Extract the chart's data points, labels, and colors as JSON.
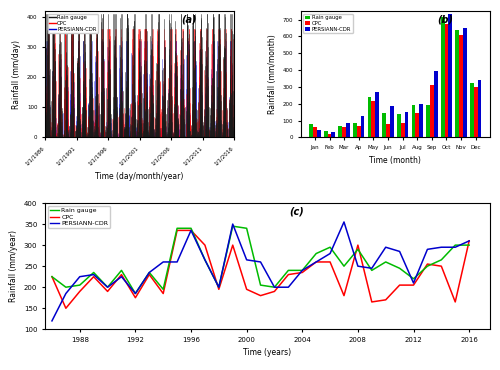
{
  "panel_a": {
    "label": "(a)",
    "xlabel": "Time (day/month/year)",
    "ylabel": "Rainfall (mm/day)",
    "ylim": [
      0,
      420
    ],
    "yticks": [
      0,
      100,
      200,
      300,
      400
    ],
    "xtick_labels": [
      "1/1/1986",
      "1/1/1991",
      "1/1/1996",
      "1/1/2001",
      "1/1/2006",
      "1/1/2011",
      "1/1/2016"
    ],
    "rg_color": "#1a1a1a",
    "cpc_color": "#ff0000",
    "persiann_color": "#0000cd",
    "legend": [
      "Rain gauge",
      "CPC",
      "PERSIANN-CDR"
    ]
  },
  "panel_b": {
    "label": "(b)",
    "xlabel": "Time (month)",
    "ylabel": "Rainfall (mm/month)",
    "ylim": [
      0,
      750
    ],
    "yticks": [
      0,
      100,
      200,
      300,
      400,
      500,
      600,
      700
    ],
    "months": [
      "Jan",
      "Feb",
      "Mar",
      "Ap",
      "May",
      "Jun",
      "Jul",
      "Aug",
      "Sep",
      "Oct",
      "Nov",
      "Dec"
    ],
    "rg_color": "#00bb00",
    "cpc_color": "#ff0000",
    "persiann_color": "#0000cd",
    "rg_values": [
      78,
      40,
      70,
      85,
      240,
      145,
      140,
      190,
      190,
      715,
      635,
      320
    ],
    "cpc_values": [
      62,
      20,
      62,
      68,
      215,
      80,
      85,
      145,
      310,
      675,
      610,
      300
    ],
    "persiann_values": [
      42,
      30,
      88,
      128,
      270,
      185,
      150,
      200,
      395,
      730,
      650,
      340
    ],
    "legend": [
      "Rain gauge",
      "CPC",
      "PERSIANN-CDR"
    ]
  },
  "panel_c": {
    "label": "(c)",
    "xlabel": "Time (years)",
    "ylabel": "Rainfall (mm/year)",
    "ylim": [
      100,
      400
    ],
    "yticks": [
      100,
      150,
      200,
      250,
      300,
      350,
      400
    ],
    "years": [
      1986,
      1987,
      1988,
      1989,
      1990,
      1991,
      1992,
      1993,
      1994,
      1995,
      1996,
      1997,
      1998,
      1999,
      2000,
      2001,
      2002,
      2003,
      2004,
      2005,
      2006,
      2007,
      2008,
      2009,
      2010,
      2011,
      2012,
      2013,
      2014,
      2015,
      2016
    ],
    "rg_color": "#00bb00",
    "cpc_color": "#ff0000",
    "persiann_color": "#0000cd",
    "rg_values": [
      225,
      200,
      205,
      235,
      200,
      240,
      185,
      235,
      195,
      340,
      340,
      265,
      200,
      345,
      340,
      205,
      200,
      240,
      240,
      280,
      295,
      250,
      290,
      240,
      260,
      245,
      220,
      250,
      265,
      300,
      300
    ],
    "cpc_values": [
      225,
      150,
      190,
      225,
      190,
      230,
      175,
      230,
      185,
      335,
      335,
      300,
      195,
      300,
      195,
      180,
      190,
      230,
      235,
      260,
      260,
      180,
      300,
      165,
      170,
      205,
      205,
      255,
      250,
      165,
      310
    ],
    "persiann_values": [
      120,
      185,
      225,
      230,
      200,
      225,
      185,
      235,
      260,
      260,
      335,
      265,
      200,
      350,
      265,
      260,
      200,
      200,
      240,
      260,
      280,
      355,
      250,
      245,
      295,
      285,
      210,
      290,
      295,
      295,
      310
    ],
    "legend": [
      "Rain gauge",
      "CPC",
      "PERSIANN-CDR"
    ]
  }
}
